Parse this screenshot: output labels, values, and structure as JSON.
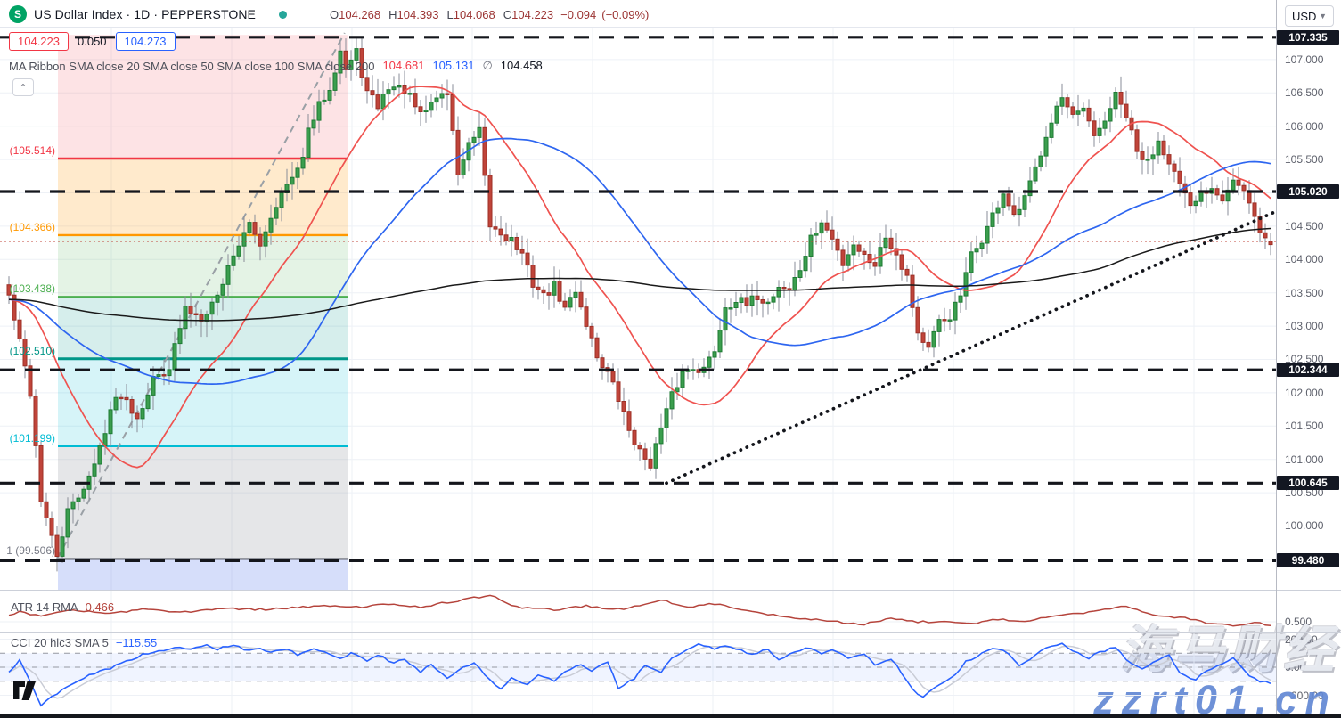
{
  "header": {
    "logo_letter": "S",
    "title": "US Dollar Index · 1D · PEPPERSTONE",
    "ohlc": [
      {
        "k": "O",
        "v": "104.268"
      },
      {
        "k": "H",
        "v": "104.393"
      },
      {
        "k": "L",
        "v": "104.068"
      },
      {
        "k": "C",
        "v": "104.223"
      }
    ],
    "change": "−0.094",
    "change_pct": "(−0.09%)"
  },
  "quote_row": {
    "bid": "104.223",
    "spread": "0.050",
    "ask": "104.273"
  },
  "ma_ribbon": {
    "label": "MA Ribbon SMA close 20 SMA close 50 SMA close 100 SMA close 200",
    "values": [
      {
        "text": "104.681",
        "color": "#f23645"
      },
      {
        "text": "105.131",
        "color": "#2962ff"
      },
      {
        "text": "∅",
        "color": "#787b86"
      },
      {
        "text": "104.458",
        "color": "#131722"
      }
    ]
  },
  "collapse_glyph": "⌃",
  "axis": {
    "currency": "USD",
    "ticks": [
      "107.000",
      "106.500",
      "106.000",
      "105.500",
      "104.500",
      "104.000",
      "103.500",
      "103.000",
      "102.500",
      "102.000",
      "101.500",
      "101.000",
      "100.500",
      "100.000"
    ],
    "level_labels": [
      {
        "text": "107.335",
        "price": 107.335
      },
      {
        "text": "105.020",
        "price": 105.02
      },
      {
        "text": "102.344",
        "price": 102.344
      },
      {
        "text": "100.645",
        "price": 100.645
      },
      {
        "text": "99.480",
        "price": 99.48
      }
    ],
    "atr_ticks": [
      {
        "text": "0.500",
        "value": 0.5
      }
    ],
    "cci_ticks": [
      {
        "text": "200.00",
        "value": 200
      },
      {
        "text": "0.00",
        "value": 0
      },
      {
        "text": "−200.00",
        "value": -200
      }
    ]
  },
  "fib": {
    "top_price": 107.37,
    "levels": [
      {
        "label": "(105.514)",
        "price": 105.514,
        "color": "#f23645"
      },
      {
        "label": "(104.366)",
        "price": 104.366,
        "color": "#ff9800"
      },
      {
        "label": "(103.438)",
        "price": 103.438,
        "color": "#4caf50"
      },
      {
        "label": "(102.510)",
        "price": 102.51,
        "color": "#009688"
      },
      {
        "label": "(101.199)",
        "price": 101.199,
        "color": "#00bcd4"
      },
      {
        "label": "1 (99.506)",
        "price": 99.506,
        "color": "#787b86"
      }
    ],
    "zone_fills": [
      "rgba(242,54,69,0.14)",
      "rgba(255,152,0,0.20)",
      "rgba(76,175,80,0.15)",
      "rgba(0,150,136,0.16)",
      "rgba(0,188,212,0.16)",
      "rgba(135,140,152,0.22)",
      "rgba(98,128,235,0.26)"
    ]
  },
  "indicators": {
    "atr": {
      "label": "ATR 14 RMA",
      "value": "0.466",
      "color": "#b5443c"
    },
    "cci": {
      "label": "CCI 20 hlc3 SMA 5",
      "value": "−115.55",
      "color": "#2962ff"
    }
  },
  "watermark": {
    "line1": "海马财经",
    "line2": "zzrt01.cn"
  },
  "chart_data": {
    "type": "candlestick",
    "title": "US Dollar Index",
    "timeframe": "1D",
    "exchange": "PEPPERSTONE",
    "last_bar": {
      "open": 104.268,
      "high": 104.393,
      "low": 104.068,
      "close": 104.223,
      "change": -0.094,
      "change_pct": -0.09
    },
    "price_axis_range": [
      98.9,
      107.6
    ],
    "grid_step": 0.5,
    "bars": 237,
    "close_anchors": [
      [
        0,
        103.45
      ],
      [
        2,
        102.75
      ],
      [
        4,
        102.0
      ],
      [
        6,
        100.4
      ],
      [
        8,
        99.8
      ],
      [
        9,
        99.55
      ],
      [
        11,
        100.2
      ],
      [
        13,
        100.45
      ],
      [
        16,
        100.9
      ],
      [
        19,
        101.75
      ],
      [
        21,
        102.0
      ],
      [
        24,
        101.65
      ],
      [
        27,
        102.2
      ],
      [
        30,
        102.4
      ],
      [
        33,
        103.25
      ],
      [
        36,
        103.15
      ],
      [
        39,
        103.45
      ],
      [
        42,
        104.1
      ],
      [
        45,
        104.5
      ],
      [
        47,
        104.25
      ],
      [
        50,
        104.85
      ],
      [
        52,
        105.1
      ],
      [
        54,
        105.3
      ],
      [
        56,
        105.9
      ],
      [
        58,
        106.3
      ],
      [
        60,
        106.6
      ],
      [
        62,
        107.15
      ],
      [
        63,
        106.85
      ],
      [
        65,
        107.1
      ],
      [
        67,
        106.5
      ],
      [
        69,
        106.3
      ],
      [
        71,
        106.6
      ],
      [
        74,
        106.55
      ],
      [
        77,
        106.15
      ],
      [
        80,
        106.45
      ],
      [
        82,
        106.5
      ],
      [
        84,
        105.3
      ],
      [
        86,
        105.7
      ],
      [
        88,
        105.9
      ],
      [
        90,
        104.5
      ],
      [
        92,
        104.4
      ],
      [
        94,
        104.3
      ],
      [
        96,
        104.05
      ],
      [
        98,
        103.65
      ],
      [
        100,
        103.45
      ],
      [
        102,
        103.6
      ],
      [
        104,
        103.25
      ],
      [
        106,
        103.55
      ],
      [
        108,
        103.05
      ],
      [
        110,
        102.55
      ],
      [
        112,
        102.3
      ],
      [
        114,
        101.9
      ],
      [
        116,
        101.45
      ],
      [
        118,
        101.1
      ],
      [
        120,
        100.95
      ],
      [
        122,
        101.45
      ],
      [
        124,
        101.95
      ],
      [
        126,
        102.3
      ],
      [
        128,
        102.4
      ],
      [
        130,
        102.35
      ],
      [
        132,
        102.65
      ],
      [
        134,
        103.3
      ],
      [
        136,
        103.4
      ],
      [
        138,
        103.3
      ],
      [
        140,
        103.45
      ],
      [
        142,
        103.35
      ],
      [
        144,
        103.6
      ],
      [
        146,
        103.55
      ],
      [
        148,
        103.85
      ],
      [
        150,
        104.3
      ],
      [
        152,
        104.55
      ],
      [
        154,
        104.3
      ],
      [
        156,
        103.95
      ],
      [
        158,
        104.25
      ],
      [
        160,
        104.05
      ],
      [
        162,
        103.95
      ],
      [
        164,
        104.35
      ],
      [
        166,
        104.1
      ],
      [
        168,
        103.75
      ],
      [
        170,
        102.9
      ],
      [
        172,
        102.65
      ],
      [
        174,
        103.05
      ],
      [
        176,
        103.15
      ],
      [
        178,
        103.45
      ],
      [
        180,
        104.05
      ],
      [
        182,
        104.3
      ],
      [
        184,
        104.65
      ],
      [
        186,
        105.0
      ],
      [
        188,
        104.6
      ],
      [
        190,
        104.9
      ],
      [
        192,
        105.35
      ],
      [
        194,
        105.9
      ],
      [
        196,
        106.3
      ],
      [
        197,
        106.4
      ],
      [
        199,
        106.1
      ],
      [
        201,
        106.25
      ],
      [
        203,
        105.8
      ],
      [
        205,
        106.1
      ],
      [
        207,
        106.45
      ],
      [
        209,
        106.15
      ],
      [
        211,
        105.6
      ],
      [
        213,
        105.45
      ],
      [
        215,
        105.8
      ],
      [
        217,
        105.5
      ],
      [
        219,
        105.1
      ],
      [
        221,
        104.75
      ],
      [
        223,
        105.0
      ],
      [
        225,
        105.1
      ],
      [
        227,
        104.95
      ],
      [
        229,
        105.2
      ],
      [
        231,
        105.0
      ],
      [
        233,
        104.6
      ],
      [
        234,
        104.45
      ],
      [
        235,
        104.3
      ],
      [
        236,
        104.223
      ]
    ],
    "sma_overlays": [
      {
        "name": "SMA 20",
        "window": 20,
        "color": "#ef5350"
      },
      {
        "name": "SMA 50",
        "window": 50,
        "color": "#2e66f0"
      },
      {
        "name": "SMA 200",
        "window": 200,
        "color": "#1a1a1a"
      }
    ],
    "dashed_levels": [
      107.335,
      105.02,
      102.344,
      100.645,
      99.48
    ],
    "price_line": 104.273,
    "trendline_dotted": {
      "from": [
        123,
        100.645
      ],
      "to": [
        237,
        104.72
      ]
    },
    "fib_trendline": {
      "from": [
        9,
        99.506
      ],
      "to": [
        62.8,
        107.4
      ]
    },
    "atr_points": [
      [
        0,
        0.56
      ],
      [
        2,
        0.58
      ],
      [
        6,
        0.55
      ],
      [
        12,
        0.6
      ],
      [
        18,
        0.57
      ],
      [
        25,
        0.6
      ],
      [
        32,
        0.58
      ],
      [
        40,
        0.61
      ],
      [
        48,
        0.6
      ],
      [
        57,
        0.63
      ],
      [
        65,
        0.62
      ],
      [
        72,
        0.65
      ],
      [
        77,
        0.62
      ],
      [
        82,
        0.66
      ],
      [
        90,
        0.72
      ],
      [
        95,
        0.62
      ],
      [
        102,
        0.6
      ],
      [
        108,
        0.63
      ],
      [
        115,
        0.6
      ],
      [
        122,
        0.68
      ],
      [
        127,
        0.62
      ],
      [
        132,
        0.65
      ],
      [
        137,
        0.6
      ],
      [
        142,
        0.56
      ],
      [
        148,
        0.53
      ],
      [
        155,
        0.5
      ],
      [
        160,
        0.48
      ],
      [
        165,
        0.53
      ],
      [
        170,
        0.5
      ],
      [
        175,
        0.5
      ],
      [
        180,
        0.48
      ],
      [
        185,
        0.52
      ],
      [
        190,
        0.5
      ],
      [
        195,
        0.55
      ],
      [
        202,
        0.58
      ],
      [
        209,
        0.63
      ],
      [
        215,
        0.55
      ],
      [
        220,
        0.53
      ],
      [
        225,
        0.48
      ],
      [
        230,
        0.47
      ],
      [
        233,
        0.5
      ],
      [
        236,
        0.466
      ]
    ],
    "cci_points": [
      [
        0,
        -30
      ],
      [
        2,
        50
      ],
      [
        6,
        -270
      ],
      [
        8,
        -210
      ],
      [
        12,
        -120
      ],
      [
        15,
        -60
      ],
      [
        18,
        -20
      ],
      [
        22,
        40
      ],
      [
        25,
        90
      ],
      [
        28,
        110
      ],
      [
        32,
        150
      ],
      [
        34,
        120
      ],
      [
        37,
        160
      ],
      [
        39,
        130
      ],
      [
        42,
        160
      ],
      [
        44,
        120
      ],
      [
        47,
        140
      ],
      [
        49,
        100
      ],
      [
        52,
        130
      ],
      [
        54,
        90
      ],
      [
        57,
        130
      ],
      [
        59,
        110
      ],
      [
        62,
        60
      ],
      [
        64,
        100
      ],
      [
        67,
        50
      ],
      [
        69,
        90
      ],
      [
        72,
        30
      ],
      [
        74,
        60
      ],
      [
        77,
        -30
      ],
      [
        79,
        20
      ],
      [
        82,
        -80
      ],
      [
        84,
        -30
      ],
      [
        87,
        40
      ],
      [
        89,
        -60
      ],
      [
        92,
        -150
      ],
      [
        94,
        -80
      ],
      [
        97,
        -120
      ],
      [
        99,
        -60
      ],
      [
        102,
        -100
      ],
      [
        104,
        -40
      ],
      [
        107,
        20
      ],
      [
        109,
        -20
      ],
      [
        112,
        40
      ],
      [
        114,
        -160
      ],
      [
        117,
        -80
      ],
      [
        119,
        20
      ],
      [
        122,
        -40
      ],
      [
        124,
        60
      ],
      [
        127,
        120
      ],
      [
        129,
        160
      ],
      [
        132,
        130
      ],
      [
        134,
        160
      ],
      [
        137,
        120
      ],
      [
        139,
        90
      ],
      [
        142,
        130
      ],
      [
        144,
        60
      ],
      [
        147,
        100
      ],
      [
        149,
        140
      ],
      [
        152,
        100
      ],
      [
        154,
        130
      ],
      [
        157,
        60
      ],
      [
        160,
        90
      ],
      [
        162,
        20
      ],
      [
        165,
        60
      ],
      [
        167,
        -40
      ],
      [
        169,
        -160
      ],
      [
        171,
        -220
      ],
      [
        174,
        -120
      ],
      [
        177,
        -60
      ],
      [
        179,
        40
      ],
      [
        182,
        100
      ],
      [
        184,
        140
      ],
      [
        187,
        100
      ],
      [
        189,
        20
      ],
      [
        192,
        80
      ],
      [
        194,
        140
      ],
      [
        197,
        170
      ],
      [
        199,
        120
      ],
      [
        202,
        60
      ],
      [
        204,
        110
      ],
      [
        207,
        140
      ],
      [
        209,
        60
      ],
      [
        212,
        -20
      ],
      [
        214,
        40
      ],
      [
        217,
        90
      ],
      [
        219,
        -40
      ],
      [
        222,
        -90
      ],
      [
        224,
        -20
      ],
      [
        227,
        30
      ],
      [
        229,
        60
      ],
      [
        232,
        -60
      ],
      [
        234,
        -100
      ],
      [
        236,
        -115.55
      ]
    ],
    "cci_band": [
      -100,
      100
    ],
    "colors": {
      "up_fill": "#3b9e4e",
      "up_stroke": "#1d7a33",
      "down_fill": "#c0443a",
      "down_stroke": "#9c2f26",
      "wick": "#8a8d98",
      "grid": "#eef1f6",
      "atr_line": "#b5443c",
      "cci_line": "#2962ff",
      "cci_sma": "#c9ccd6",
      "level_dash": "#14161c",
      "price_line": "#c0443a"
    }
  }
}
